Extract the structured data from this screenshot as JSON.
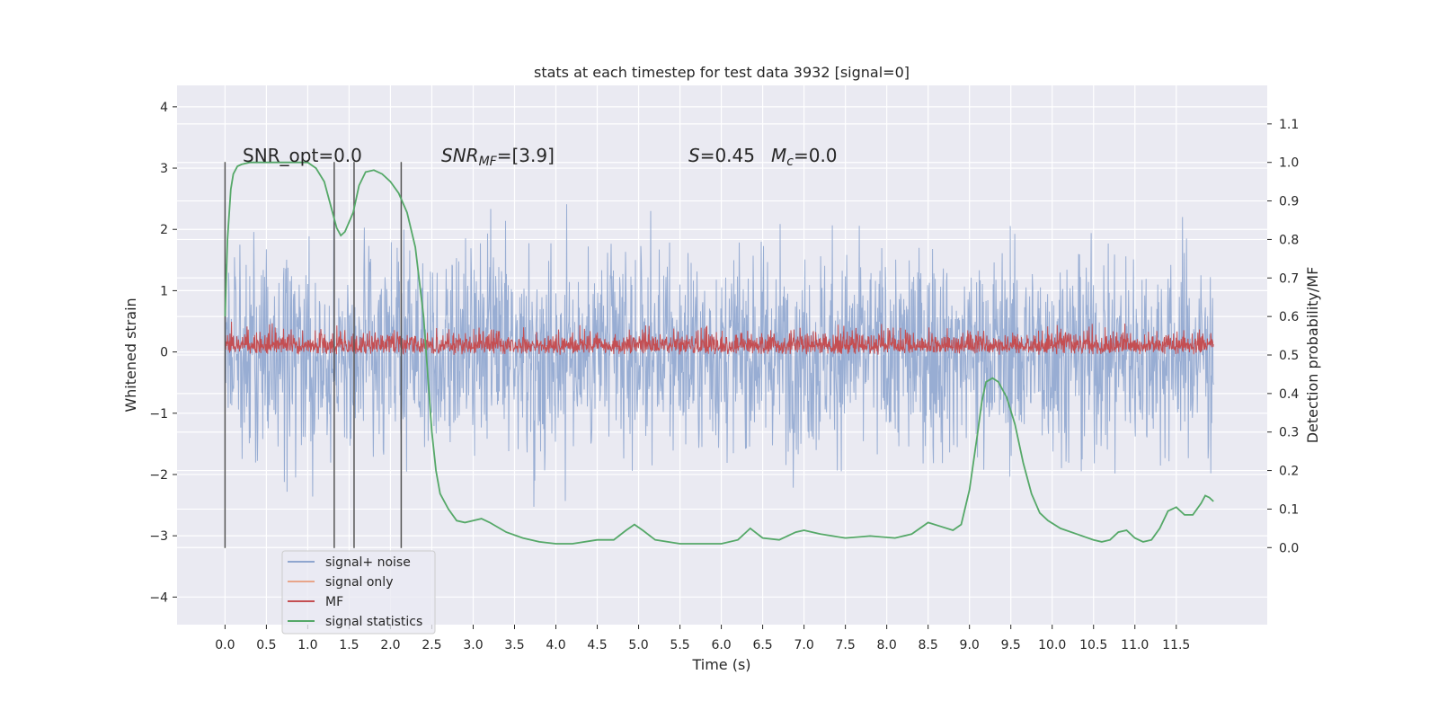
{
  "chart_data": {
    "type": "line",
    "title": "stats at each timestep for test data 3932 [signal=0]",
    "xlabel": "Time (s)",
    "ylabel_left": "Whitened strain",
    "ylabel_right": "Detection probability/MF",
    "xlim": [
      -0.58,
      12.6
    ],
    "ylim_left": [
      -4.45,
      4.35
    ],
    "ylim_right": [
      -0.2,
      1.2
    ],
    "x_ticks": [
      0.0,
      0.5,
      1.0,
      1.5,
      2.0,
      2.5,
      3.0,
      3.5,
      4.0,
      4.5,
      5.0,
      5.5,
      6.0,
      6.5,
      7.0,
      7.5,
      8.0,
      8.5,
      9.0,
      9.5,
      10.0,
      10.5,
      11.0,
      11.5
    ],
    "x_tick_labels": [
      "0.0",
      "0.5",
      "1.0",
      "1.5",
      "2.0",
      "2.5",
      "3.0",
      "3.5",
      "4.0",
      "4.5",
      "5.0",
      "5.5",
      "6.0",
      "6.5",
      "7.0",
      "7.5",
      "8.0",
      "8.5",
      "9.0",
      "9.5",
      "10.0",
      "10.5",
      "11.0",
      "11.5"
    ],
    "y_left_ticks": [
      -4,
      -3,
      -2,
      -1,
      0,
      1,
      2,
      3,
      4
    ],
    "y_left_tick_labels": [
      "−4",
      "−3",
      "−2",
      "−1",
      "0",
      "1",
      "2",
      "3",
      "4"
    ],
    "y_right_ticks": [
      0.0,
      0.1,
      0.2,
      0.3,
      0.4,
      0.5,
      0.6,
      0.7,
      0.8,
      0.9,
      1.0,
      1.1
    ],
    "y_right_tick_labels": [
      "0.0",
      "0.1",
      "0.2",
      "0.3",
      "0.4",
      "0.5",
      "0.6",
      "0.7",
      "0.8",
      "0.9",
      "1.0",
      "1.1"
    ],
    "grid": true,
    "legend_position": "bottom-left",
    "annotations": {
      "snr_opt": "SNR_opt=0.0",
      "snr_mf_base": "SNR",
      "snr_mf_sub": "MF",
      "snr_mf_rest": "=[3.9]",
      "s_label": "S",
      "s_rest": "=0.45",
      "mc_base": "M",
      "mc_sub": "c",
      "mc_rest": "=0.0"
    },
    "vertical_lines": {
      "x": [
        0.0,
        1.32,
        1.56,
        2.13
      ],
      "y_range": [
        -3.2,
        3.1
      ],
      "color": "#555555"
    },
    "series": [
      {
        "name": "signal+ noise",
        "color": "#8fa6cf",
        "axis": "left",
        "x_range": [
          0.0,
          11.95
        ],
        "envelope_note": "dense whitened-strain noise, roughly symmetric within about ±3.5"
      },
      {
        "name": "signal only",
        "color": "#e8a58a",
        "axis": "left",
        "values": []
      },
      {
        "name": "MF",
        "color": "#c44e52",
        "axis": "right",
        "x_range": [
          0.0,
          11.95
        ],
        "baseline": 0.5,
        "envelope_note": "dense matched-filter output between about 0.5 and 0.6"
      },
      {
        "name": "signal statistics",
        "color": "#55a868",
        "axis": "right",
        "x": [
          0.0,
          0.03,
          0.07,
          0.1,
          0.15,
          0.2,
          0.3,
          0.5,
          0.8,
          1.0,
          1.1,
          1.2,
          1.3,
          1.35,
          1.4,
          1.45,
          1.55,
          1.62,
          1.7,
          1.8,
          1.9,
          2.0,
          2.1,
          2.2,
          2.3,
          2.4,
          2.45,
          2.5,
          2.55,
          2.6,
          2.7,
          2.8,
          2.9,
          3.0,
          3.1,
          3.2,
          3.4,
          3.6,
          3.8,
          4.0,
          4.2,
          4.5,
          4.7,
          4.85,
          4.95,
          5.05,
          5.2,
          5.5,
          6.0,
          6.2,
          6.35,
          6.5,
          6.7,
          6.9,
          7.0,
          7.2,
          7.5,
          7.8,
          8.1,
          8.3,
          8.5,
          8.65,
          8.8,
          8.9,
          9.0,
          9.1,
          9.15,
          9.2,
          9.28,
          9.35,
          9.45,
          9.55,
          9.65,
          9.75,
          9.85,
          9.95,
          10.1,
          10.3,
          10.5,
          10.6,
          10.7,
          10.8,
          10.9,
          11.0,
          11.1,
          11.2,
          11.3,
          11.4,
          11.5,
          11.6,
          11.7,
          11.8,
          11.85,
          11.9,
          11.95
        ],
        "values": [
          0.6,
          0.8,
          0.93,
          0.97,
          0.99,
          0.995,
          1.0,
          1.0,
          1.0,
          1.0,
          0.985,
          0.95,
          0.87,
          0.83,
          0.81,
          0.82,
          0.87,
          0.94,
          0.975,
          0.98,
          0.97,
          0.95,
          0.92,
          0.87,
          0.78,
          0.6,
          0.45,
          0.3,
          0.2,
          0.14,
          0.1,
          0.07,
          0.065,
          0.07,
          0.075,
          0.065,
          0.04,
          0.025,
          0.015,
          0.01,
          0.01,
          0.02,
          0.02,
          0.045,
          0.06,
          0.045,
          0.02,
          0.01,
          0.01,
          0.02,
          0.05,
          0.025,
          0.02,
          0.04,
          0.045,
          0.035,
          0.025,
          0.03,
          0.025,
          0.035,
          0.065,
          0.055,
          0.045,
          0.06,
          0.15,
          0.3,
          0.38,
          0.43,
          0.44,
          0.43,
          0.39,
          0.32,
          0.22,
          0.14,
          0.09,
          0.07,
          0.05,
          0.035,
          0.02,
          0.015,
          0.02,
          0.04,
          0.045,
          0.025,
          0.015,
          0.02,
          0.05,
          0.095,
          0.105,
          0.085,
          0.085,
          0.115,
          0.135,
          0.13,
          0.12
        ]
      }
    ]
  }
}
